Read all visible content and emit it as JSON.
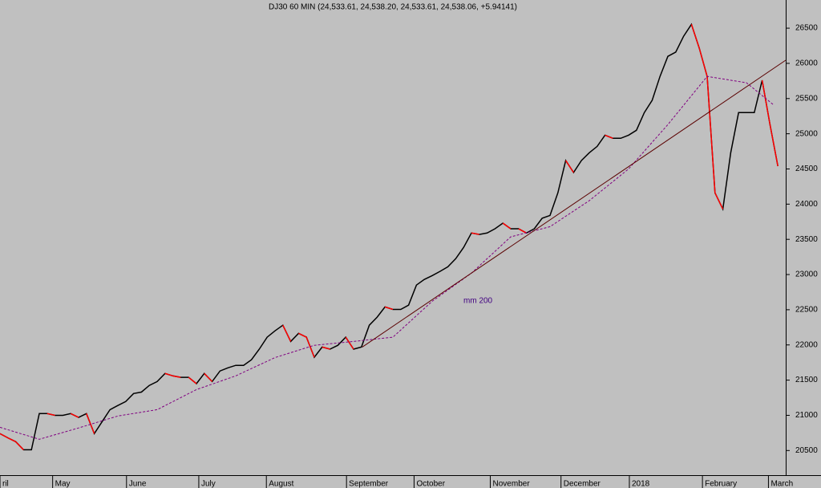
{
  "chart_data": {
    "type": "line",
    "title": "DJ30 60 MIN (24,533.61, 24,538.20, 24,533.61, 24,538.06, +5.94141)",
    "annotation": "mm 200",
    "xlim": [
      0,
      100
    ],
    "xticks": [
      {
        "value": 0,
        "label": "ril"
      },
      {
        "value": 6.7,
        "label": "May"
      },
      {
        "value": 16.1,
        "label": "June"
      },
      {
        "value": 25.3,
        "label": "July"
      },
      {
        "value": 33.9,
        "label": "August"
      },
      {
        "value": 44.1,
        "label": "September"
      },
      {
        "value": 52.7,
        "label": "October"
      },
      {
        "value": 62.4,
        "label": "November"
      },
      {
        "value": 71.4,
        "label": "December"
      },
      {
        "value": 80.1,
        "label": "2018"
      },
      {
        "value": 89.4,
        "label": "February"
      },
      {
        "value": 97.8,
        "label": "March"
      }
    ],
    "ylim": [
      20150,
      26900
    ],
    "yticks": [
      20500,
      21000,
      21500,
      22000,
      22500,
      23000,
      23500,
      24000,
      24500,
      25000,
      25500,
      26000,
      26500
    ],
    "price_color": "#000000",
    "down_color": "#ff0000",
    "series": [
      {
        "name": "DJ30",
        "color": "#000000",
        "values": [
          20740,
          20680,
          20625,
          20510,
          20510,
          21025,
          21025,
          21000,
          21000,
          21025,
          20970,
          21025,
          20740,
          20910,
          21080,
          21140,
          21195,
          21310,
          21330,
          21425,
          21480,
          21595,
          21560,
          21540,
          21540,
          21450,
          21595,
          21480,
          21630,
          21675,
          21710,
          21710,
          21790,
          21940,
          22110,
          22200,
          22280,
          22050,
          22165,
          22110,
          21825,
          21970,
          21940,
          21995,
          22110,
          21940,
          21970,
          22280,
          22395,
          22540,
          22505,
          22505,
          22565,
          22850,
          22930,
          22985,
          23045,
          23110,
          23225,
          23385,
          23590,
          23570,
          23590,
          23650,
          23730,
          23650,
          23650,
          23590,
          23650,
          23800,
          23840,
          24160,
          24620,
          24450,
          24620,
          24730,
          24820,
          24980,
          24935,
          24935,
          24980,
          25050,
          25300,
          25475,
          25815,
          26100,
          26160,
          26385,
          26555,
          26215,
          25815,
          24160,
          23930,
          24730,
          25300,
          25300,
          25300,
          25760,
          25130,
          24540
        ]
      },
      {
        "name": "mm 200",
        "color": "#800080",
        "dashed": true,
        "x": [
          0,
          5,
          10,
          15,
          20,
          25,
          30,
          35,
          40,
          45,
          50,
          55,
          60,
          65,
          70,
          75,
          80,
          85,
          90,
          95,
          98.4
        ],
        "values": [
          20830,
          20660,
          20820,
          20990,
          21080,
          21365,
          21560,
          21820,
          21995,
          22050,
          22110,
          22620,
          23020,
          23535,
          23680,
          24050,
          24500,
          25130,
          25815,
          25725,
          25415
        ]
      },
      {
        "name": "trendline",
        "color": "#5a0000",
        "x": [
          46.1,
          100
        ],
        "values": [
          21970,
          26045
        ]
      }
    ]
  }
}
